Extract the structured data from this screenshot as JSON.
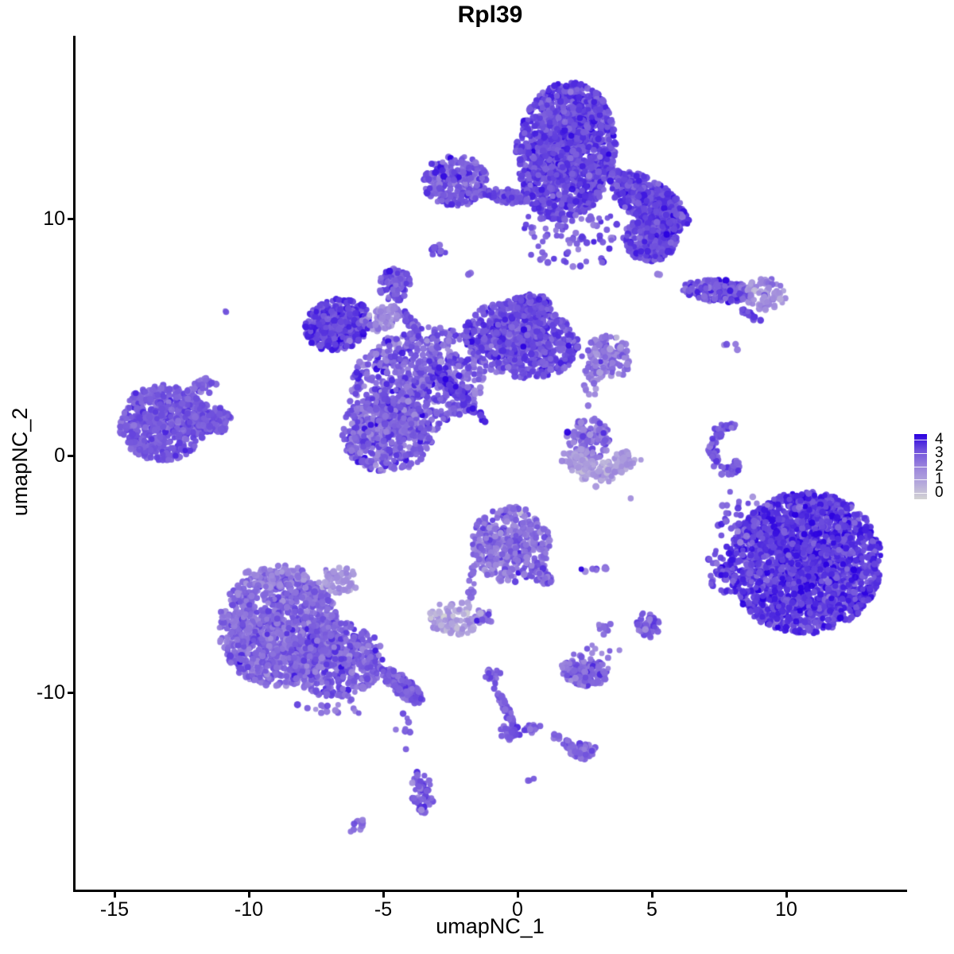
{
  "title": "Rpl39",
  "axes": {
    "x": {
      "label": "umapNC_1",
      "ticks": [
        -15,
        -10,
        -5,
        0,
        5,
        10
      ],
      "range": [
        -16.5,
        14.5
      ]
    },
    "y": {
      "label": "umapNC_2",
      "ticks": [
        10,
        0,
        -10
      ],
      "range": [
        -18.3,
        17.7
      ]
    }
  },
  "legend": {
    "ticks": [
      4,
      3,
      2,
      1,
      0
    ],
    "min": 0,
    "max": 4
  },
  "colors": {
    "gradient_stops": [
      "#D3D3D3",
      "#B4A8DC",
      "#9A83DC",
      "#6F50DC",
      "#2A00E0"
    ],
    "axis": "#000000",
    "background": "#FFFFFF"
  },
  "chart_data": {
    "type": "scatter",
    "title": "Rpl39",
    "xlabel": "umapNC_1",
    "ylabel": "umapNC_2",
    "xlim": [
      -16.5,
      14.5
    ],
    "ylim": [
      -18.3,
      17.7
    ],
    "grid": false,
    "legend_position": "right",
    "color_scale": {
      "low": "lightgrey",
      "high": "blue",
      "breaks": [
        0,
        1,
        2,
        3,
        4
      ]
    },
    "point_radius_px": 4,
    "clusters": [
      {
        "name": "top-core",
        "x": 1.8,
        "y": 12.85,
        "rx": 1.85,
        "ry": 2.95,
        "rot": 8,
        "n": 1400,
        "e": 3.1,
        "es": 0.35
      },
      {
        "name": "top-right-arm",
        "x": 4.85,
        "y": 10.77,
        "rx": 1.75,
        "ry": 0.85,
        "rot": 33,
        "n": 500,
        "e": 3.1,
        "es": 0.35
      },
      {
        "name": "top-arm-lower",
        "x": 4.94,
        "y": 9.16,
        "rx": 1.0,
        "ry": 0.95,
        "rot": 0,
        "n": 280,
        "e": 3.1,
        "es": 0.35
      },
      {
        "name": "top-sparse",
        "x": 2.0,
        "y": 9.3,
        "rx": 1.9,
        "ry": 1.5,
        "rot": 0,
        "n": 80,
        "e": 2.9,
        "es": 0.4
      },
      {
        "name": "top-left-blob",
        "x": -2.31,
        "y": 11.58,
        "rx": 1.2,
        "ry": 1.1,
        "rot": 0,
        "n": 260,
        "e": 2.9,
        "es": 0.45
      },
      {
        "name": "top-connector",
        "x": -0.33,
        "y": 10.94,
        "rx": 0.95,
        "ry": 0.3,
        "rot": 5,
        "n": 70,
        "e": 3.0,
        "es": 0.3
      },
      {
        "name": "tiny-blob-left",
        "x": -2.93,
        "y": 8.59,
        "rx": 0.3,
        "ry": 0.33,
        "rot": 0,
        "n": 14,
        "e": 3.0,
        "es": 0.3
      },
      {
        "name": "dot-a",
        "x": -1.8,
        "y": 7.62,
        "rx": 0.1,
        "ry": 0.1,
        "rot": 0,
        "n": 2,
        "e": 2.5,
        "es": 0.2
      },
      {
        "name": "dot-b",
        "x": 5.3,
        "y": 7.62,
        "rx": 0.1,
        "ry": 0.1,
        "rot": 0,
        "n": 2,
        "e": 2.0,
        "es": 0.2
      },
      {
        "name": "mid-left-lobe",
        "x": -6.69,
        "y": 5.54,
        "rx": 1.25,
        "ry": 1.07,
        "rot": -15,
        "n": 420,
        "e": 3.2,
        "es": 0.4
      },
      {
        "name": "mid-left-fringe",
        "x": -5.06,
        "y": 5.81,
        "rx": 0.8,
        "ry": 0.5,
        "rot": -20,
        "n": 60,
        "e": 1.9,
        "es": 0.5
      },
      {
        "name": "mid-top-knob",
        "x": -4.56,
        "y": 7.21,
        "rx": 0.62,
        "ry": 0.68,
        "rot": 0,
        "n": 90,
        "e": 2.9,
        "es": 0.35
      },
      {
        "name": "mid-knob-streak",
        "x": -3.6,
        "y": 5.0,
        "rx": 1.35,
        "ry": 0.22,
        "rot": 55,
        "n": 50,
        "e": 2.8,
        "es": 0.35
      },
      {
        "name": "mid-central",
        "x": -3.73,
        "y": 3.12,
        "rx": 2.65,
        "ry": 2.2,
        "rot": -20,
        "n": 700,
        "e": 2.7,
        "es": 0.5
      },
      {
        "name": "mid-lower-lobe",
        "x": -4.85,
        "y": 0.94,
        "rx": 1.7,
        "ry": 1.65,
        "rot": 0,
        "n": 520,
        "e": 2.7,
        "es": 0.5
      },
      {
        "name": "mid-right-lobe",
        "x": 0.12,
        "y": 4.87,
        "rx": 2.15,
        "ry": 1.6,
        "rot": 10,
        "n": 750,
        "e": 3.0,
        "es": 0.4
      },
      {
        "name": "mid-right-knob",
        "x": 0.5,
        "y": 6.31,
        "rx": 0.8,
        "ry": 0.5,
        "rot": 0,
        "n": 120,
        "e": 3.1,
        "es": 0.35
      },
      {
        "name": "mid-right-ext",
        "x": 3.28,
        "y": 4.13,
        "rx": 0.95,
        "ry": 1.0,
        "rot": 0,
        "n": 140,
        "e": 2.2,
        "es": 0.5
      },
      {
        "name": "mid-ext-trail",
        "x": 2.78,
        "y": 2.79,
        "rx": 0.35,
        "ry": 0.8,
        "rot": 0,
        "n": 12,
        "e": 2.1,
        "es": 0.4
      },
      {
        "name": "mid-dark-streak",
        "x": -2.25,
        "y": 2.7,
        "rx": 1.6,
        "ry": 0.2,
        "rot": 47,
        "n": 90,
        "e": 3.4,
        "es": 0.3
      },
      {
        "name": "far-left-main",
        "x": -13.2,
        "y": 1.38,
        "rx": 1.65,
        "ry": 1.6,
        "rot": 0,
        "n": 600,
        "e": 2.85,
        "es": 0.3
      },
      {
        "name": "far-left-taper",
        "x": -11.48,
        "y": 1.54,
        "rx": 0.9,
        "ry": 0.6,
        "rot": 5,
        "n": 130,
        "e": 2.85,
        "es": 0.3
      },
      {
        "name": "far-left-arm",
        "x": -11.78,
        "y": 2.82,
        "rx": 0.65,
        "ry": 0.34,
        "rot": -30,
        "n": 40,
        "e": 2.6,
        "es": 0.3
      },
      {
        "name": "iso-dot-left",
        "x": -10.77,
        "y": 6.11,
        "rx": 0.12,
        "ry": 0.1,
        "rot": -35,
        "n": 2,
        "e": 2.6,
        "es": 0.2
      },
      {
        "name": "right-band",
        "x": 7.43,
        "y": 6.95,
        "rx": 1.3,
        "ry": 0.48,
        "rot": 3,
        "n": 200,
        "e": 2.9,
        "es": 0.4
      },
      {
        "name": "right-band-light",
        "x": 9.23,
        "y": 6.81,
        "rx": 0.78,
        "ry": 0.68,
        "rot": 0,
        "n": 80,
        "e": 1.7,
        "es": 0.5
      },
      {
        "name": "right-streak",
        "x": 8.7,
        "y": 5.91,
        "rx": 0.55,
        "ry": 0.14,
        "rot": 30,
        "n": 18,
        "e": 3.0,
        "es": 0.3
      },
      {
        "name": "right-dots",
        "x": 7.85,
        "y": 4.55,
        "rx": 0.35,
        "ry": 0.35,
        "rot": 0,
        "n": 4,
        "e": 2.6,
        "es": 0.6
      },
      {
        "name": "center-right-patch",
        "x": 2.63,
        "y": 0.7,
        "rx": 0.85,
        "ry": 0.9,
        "rot": 0,
        "n": 110,
        "e": 2.5,
        "es": 0.5
      },
      {
        "name": "center-right-crescent",
        "x": 3.08,
        "y": 0.45,
        "shape": "arc",
        "r": 1.1,
        "a0": 15,
        "a1": 168,
        "thick": 0.22,
        "n": 160,
        "e": 1.4,
        "es": 0.4
      },
      {
        "name": "crescent-right",
        "x": 8.3,
        "y": 0.3,
        "shape": "arc",
        "r": 1.05,
        "a0": 100,
        "a1": 260,
        "thick": 0.1,
        "n": 75,
        "e": 2.85,
        "es": 0.35
      },
      {
        "name": "crescent-inner-dots",
        "x": 8.1,
        "y": -0.3,
        "rx": 0.15,
        "ry": 0.75,
        "rot": 0,
        "n": 10,
        "e": 2.9,
        "es": 0.3
      },
      {
        "name": "dot-below-crescent",
        "x": 7.9,
        "y": -1.58,
        "rx": 0.08,
        "ry": 0.08,
        "rot": 0,
        "n": 1,
        "e": 2.8,
        "es": 0.1
      },
      {
        "name": "dot-below-crescent2",
        "x": 8.76,
        "y": -1.81,
        "rx": 0.08,
        "ry": 0.08,
        "rot": 0,
        "n": 1,
        "e": 1.5,
        "es": 0.1
      },
      {
        "name": "dot-mid",
        "x": 4.26,
        "y": -1.81,
        "rx": 0.08,
        "ry": 0.08,
        "rot": 0,
        "n": 1,
        "e": 1.8,
        "es": 0.1
      },
      {
        "name": "bottom-right-main",
        "x": 10.71,
        "y": -4.53,
        "rx": 2.85,
        "ry": 3.0,
        "rot": -8,
        "n": 2100,
        "e": 3.3,
        "es": 0.4
      },
      {
        "name": "bottom-right-scatter",
        "x": 8.3,
        "y": -2.7,
        "rx": 0.95,
        "ry": 1.15,
        "rot": 0,
        "n": 40,
        "e": 3.0,
        "es": 0.4
      },
      {
        "name": "bottom-right-left-edge",
        "x": 7.6,
        "y": -4.9,
        "rx": 0.55,
        "ry": 1.2,
        "rot": 0,
        "n": 50,
        "e": 3.0,
        "es": 0.4
      },
      {
        "name": "center-bottom-main",
        "x": -0.24,
        "y": -3.76,
        "rx": 1.5,
        "ry": 1.6,
        "rot": 0,
        "n": 380,
        "e": 2.35,
        "es": 0.5
      },
      {
        "name": "center-bottom-tip",
        "x": 0.86,
        "y": -5.0,
        "rx": 0.5,
        "ry": 0.35,
        "rot": 35,
        "n": 50,
        "e": 2.6,
        "es": 0.4
      },
      {
        "name": "center-bottom-tail",
        "x": -1.7,
        "y": -5.3,
        "rx": 0.14,
        "ry": 0.8,
        "rot": 8,
        "n": 12,
        "e": 2.4,
        "es": 0.3
      },
      {
        "name": "center-bottom-foot",
        "x": -1.36,
        "y": -6.88,
        "rx": 0.55,
        "ry": 0.25,
        "rot": -20,
        "n": 12,
        "e": 2.4,
        "es": 0.3
      },
      {
        "name": "row-right-dots",
        "x": 2.78,
        "y": -4.8,
        "rx": 0.6,
        "ry": 0.13,
        "rot": 0,
        "n": 8,
        "e": 2.7,
        "es": 0.6
      },
      {
        "name": "light-blob",
        "x": -2.31,
        "y": -6.85,
        "rx": 1.0,
        "ry": 0.75,
        "rot": 0,
        "n": 90,
        "e": 1.3,
        "es": 0.45
      },
      {
        "name": "light-blob-dots",
        "x": -1.2,
        "y": -6.9,
        "rx": 0.4,
        "ry": 0.22,
        "rot": 0,
        "n": 5,
        "e": 2.9,
        "es": 0.6
      },
      {
        "name": "small-right-clump",
        "x": 3.25,
        "y": -7.3,
        "rx": 0.3,
        "ry": 0.28,
        "rot": 0,
        "n": 12,
        "e": 2.7,
        "es": 0.4
      },
      {
        "name": "small-cluster-k",
        "x": 4.85,
        "y": -7.15,
        "rx": 0.42,
        "ry": 0.58,
        "rot": 0,
        "n": 45,
        "e": 2.6,
        "es": 0.4
      },
      {
        "name": "cluster-l",
        "x": 2.43,
        "y": -9.16,
        "rx": 1.0,
        "ry": 0.58,
        "rot": 0,
        "n": 130,
        "e": 2.5,
        "es": 0.45
      },
      {
        "name": "cluster-l-scatter",
        "x": 2.9,
        "y": -8.2,
        "rx": 0.9,
        "ry": 0.5,
        "rot": 0,
        "n": 12,
        "e": 2.4,
        "es": 0.4
      },
      {
        "name": "bottom-left-main",
        "x": -8.9,
        "y": -7.3,
        "rx": 2.25,
        "ry": 2.45,
        "rot": 0,
        "n": 1100,
        "e": 2.55,
        "es": 0.4
      },
      {
        "name": "bottom-left-right",
        "x": -6.8,
        "y": -8.6,
        "rx": 1.8,
        "ry": 1.6,
        "rot": 0,
        "n": 500,
        "e": 2.7,
        "es": 0.4
      },
      {
        "name": "bottom-left-light-patch",
        "x": -6.69,
        "y": -5.27,
        "rx": 0.85,
        "ry": 0.55,
        "rot": 0,
        "n": 60,
        "e": 1.6,
        "es": 0.4
      },
      {
        "name": "bottom-left-top-edge",
        "x": -9.05,
        "y": -5.1,
        "rx": 1.3,
        "ry": 0.45,
        "rot": -5,
        "n": 70,
        "e": 2.1,
        "es": 0.4
      },
      {
        "name": "bottom-left-tail",
        "x": -4.32,
        "y": -9.7,
        "rx": 1.0,
        "ry": 0.38,
        "rot": 40,
        "n": 180,
        "e": 2.8,
        "es": 0.35
      },
      {
        "name": "bottom-left-under-scatter",
        "x": -6.8,
        "y": -10.5,
        "rx": 1.6,
        "ry": 0.45,
        "rot": 0,
        "n": 18,
        "e": 2.6,
        "es": 0.4
      },
      {
        "name": "trail-dots",
        "x": -4.25,
        "y": -11.6,
        "rx": 0.28,
        "ry": 0.85,
        "rot": 0,
        "n": 8,
        "e": 2.7,
        "es": 0.3
      },
      {
        "name": "trail-blob",
        "x": -3.55,
        "y": -14.16,
        "rx": 0.42,
        "ry": 1.0,
        "rot": -8,
        "n": 60,
        "e": 2.7,
        "es": 0.35
      },
      {
        "name": "tiny-pair",
        "x": -5.89,
        "y": -15.6,
        "rx": 0.45,
        "ry": 0.2,
        "rot": -25,
        "n": 10,
        "e": 2.5,
        "es": 0.3
      },
      {
        "name": "streak-knob",
        "x": -0.92,
        "y": -9.3,
        "rx": 0.3,
        "ry": 0.35,
        "rot": 0,
        "n": 18,
        "e": 2.7,
        "es": 0.3
      },
      {
        "name": "streak-vertical",
        "x": -0.5,
        "y": -10.54,
        "rx": 0.9,
        "ry": 0.15,
        "rot": 65,
        "n": 45,
        "e": 2.7,
        "es": 0.3
      },
      {
        "name": "streak-branch-blob",
        "x": -0.3,
        "y": -11.68,
        "rx": 0.4,
        "ry": 0.32,
        "rot": 0,
        "n": 30,
        "e": 2.8,
        "es": 0.3
      },
      {
        "name": "streak-right-branch",
        "x": 0.5,
        "y": -11.54,
        "rx": 0.4,
        "ry": 0.16,
        "rot": -10,
        "n": 16,
        "e": 2.6,
        "es": 0.3
      },
      {
        "name": "streak-diagonal",
        "x": 1.95,
        "y": -12.21,
        "rx": 0.8,
        "ry": 0.18,
        "rot": 28,
        "n": 35,
        "e": 2.7,
        "es": 0.3
      },
      {
        "name": "streak-end-blob",
        "x": 2.43,
        "y": -12.45,
        "rx": 0.5,
        "ry": 0.38,
        "rot": 0,
        "n": 60,
        "e": 2.6,
        "es": 0.35
      },
      {
        "name": "dot-pair-below",
        "x": 0.55,
        "y": -13.66,
        "rx": 0.18,
        "ry": 0.12,
        "rot": 0,
        "n": 3,
        "e": 2.7,
        "es": 0.2
      }
    ]
  }
}
